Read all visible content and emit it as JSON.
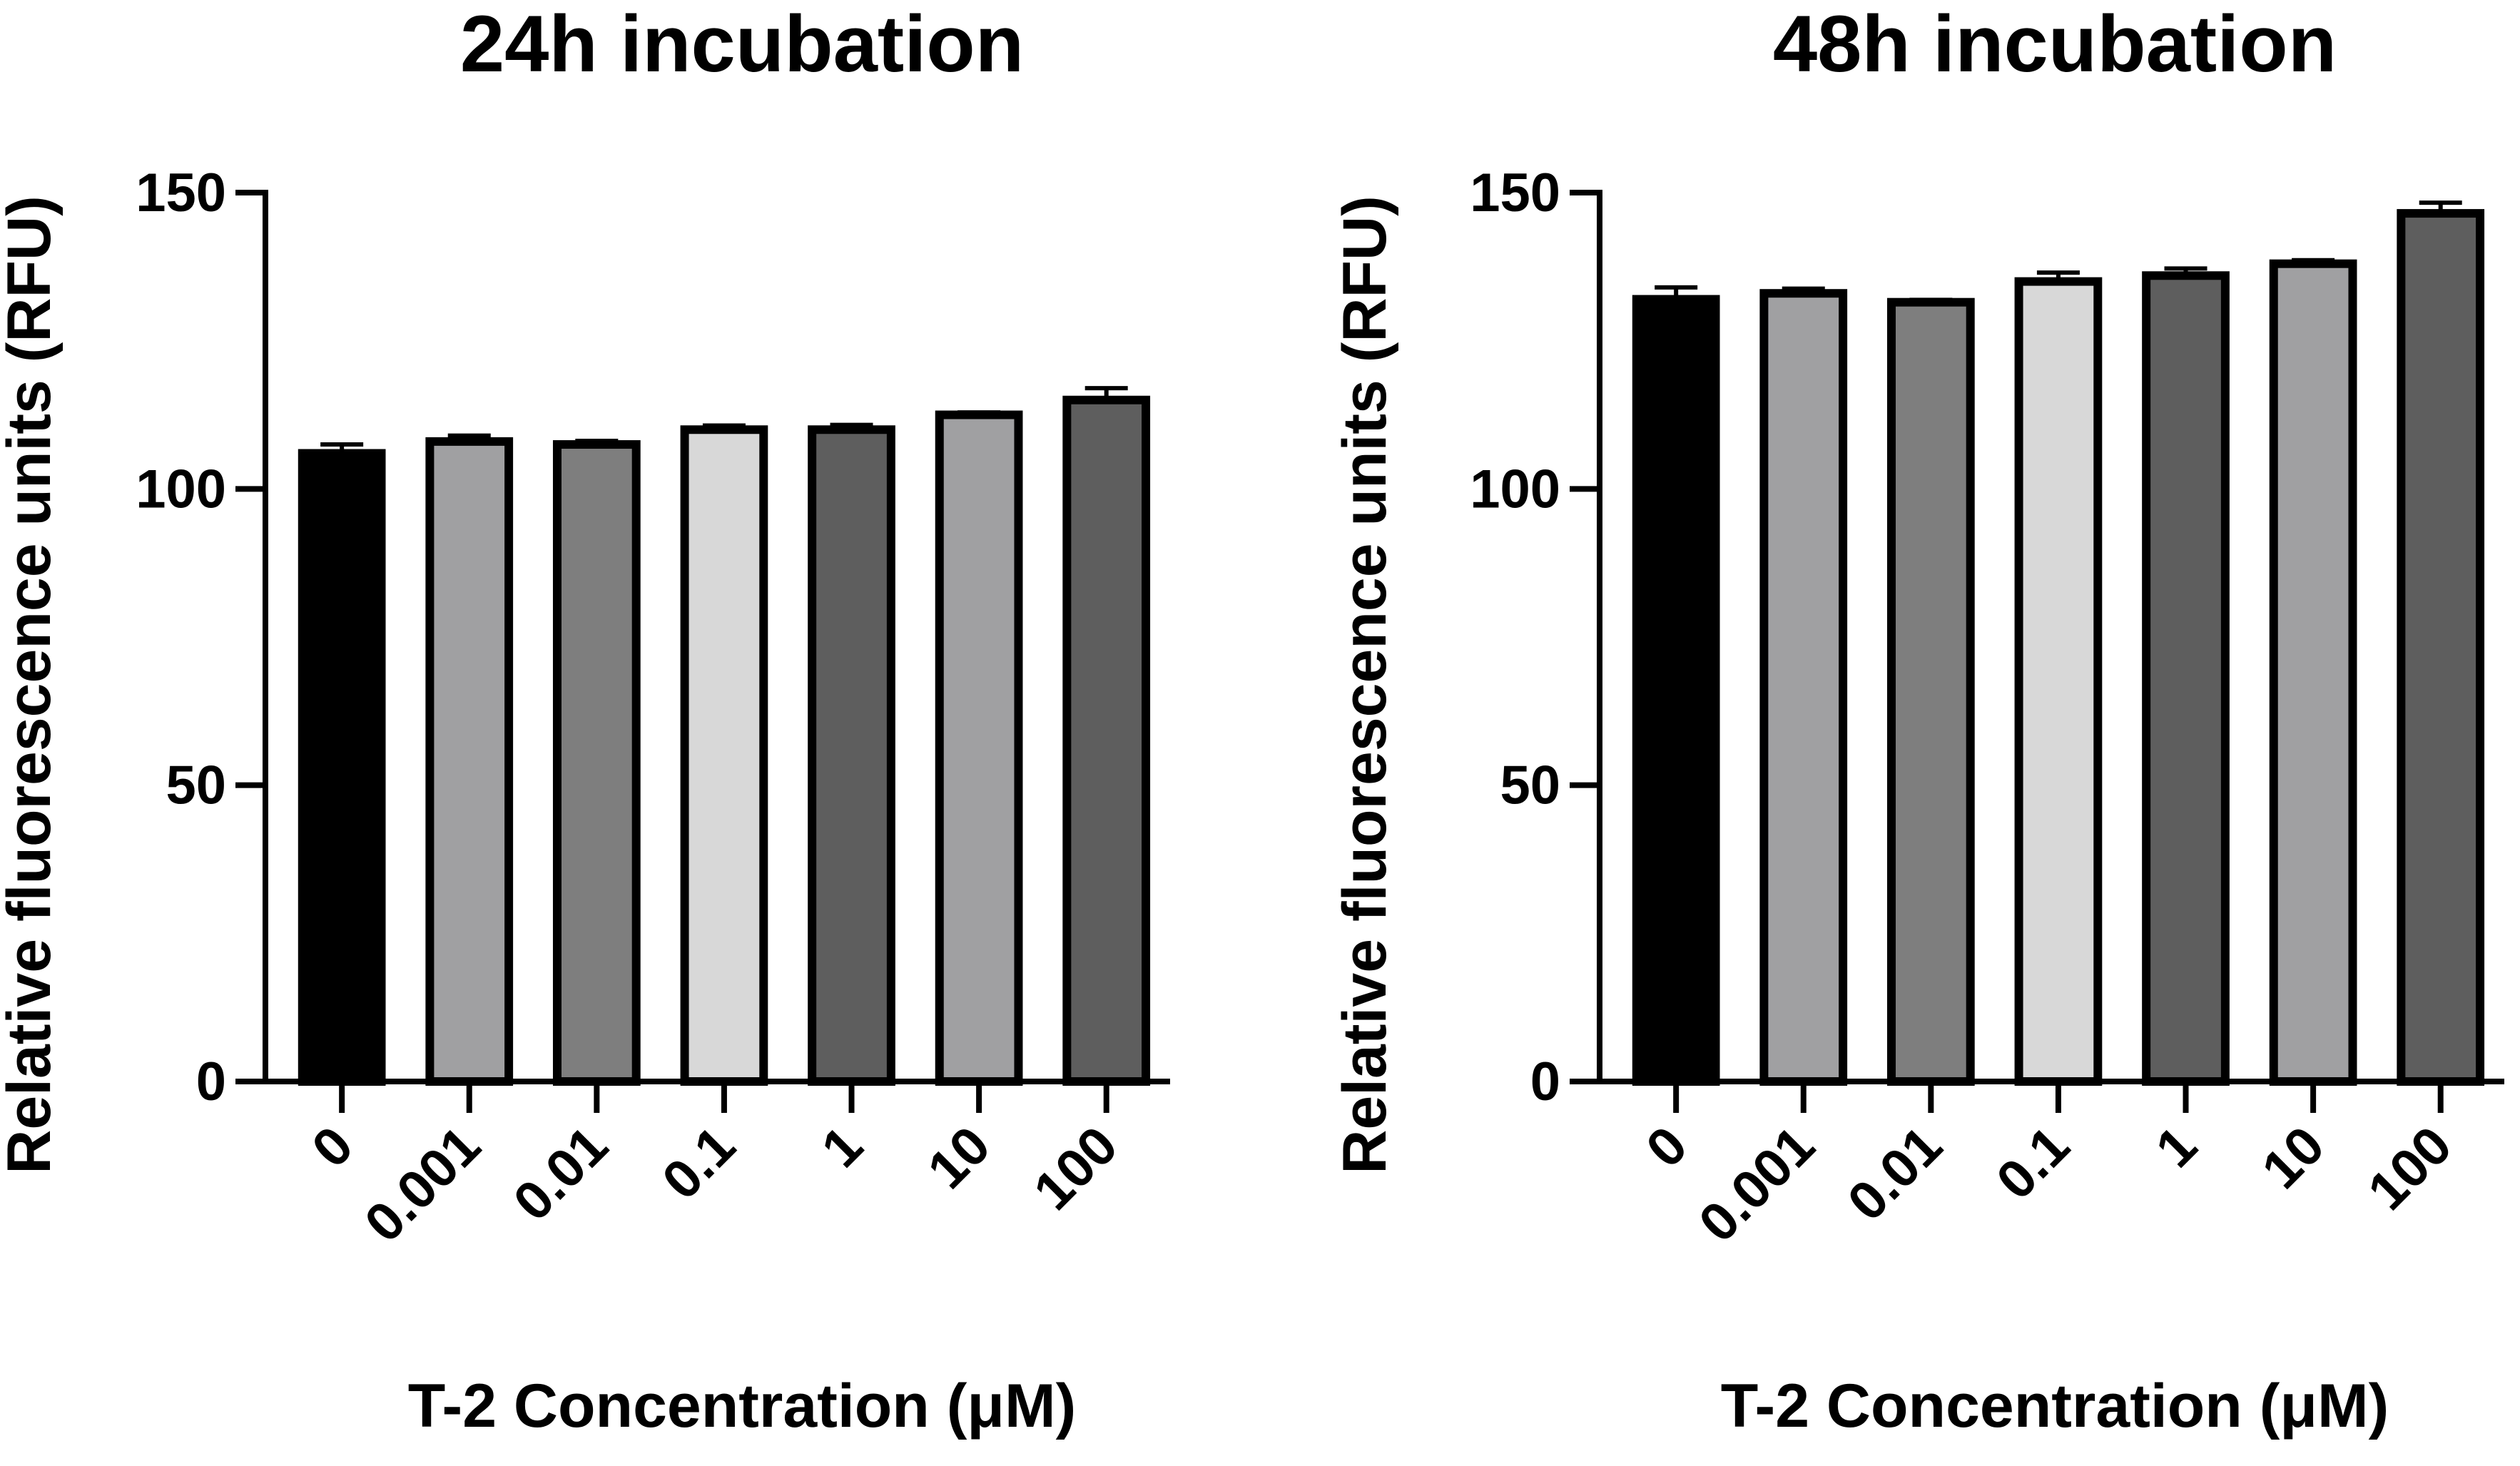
{
  "chart_data": [
    {
      "type": "bar",
      "title": "24h incubation",
      "xlabel": "T-2 Concentration (μM)",
      "ylabel": "Relative fluorescence units (RFU)",
      "ylim": [
        0,
        150
      ],
      "yticks": [
        "0",
        "50",
        "100",
        "150"
      ],
      "categories": [
        "0",
        "0.001",
        "0.01",
        "0.1",
        "1",
        "10",
        "100"
      ],
      "values": [
        106,
        108,
        107.5,
        110,
        110,
        112.5,
        115
      ],
      "errors": [
        1.5,
        1,
        0.6,
        0.7,
        0.8,
        0.4,
        2
      ],
      "fill_colors": [
        "#000000",
        "#a0a0a2",
        "#7e7e7e",
        "#d8d8d8",
        "#5e5e5e",
        "#a0a0a2",
        "#5e5e5e"
      ],
      "grid": false,
      "legend": "none"
    },
    {
      "type": "bar",
      "title": "48h incubation",
      "xlabel": "T-2 Concentration (μM)",
      "ylabel": "Relative fluorescence units (RFU)",
      "ylim": [
        0,
        150
      ],
      "yticks": [
        "0",
        "50",
        "100",
        "150"
      ],
      "categories": [
        "0",
        "0.001",
        "0.01",
        "0.1",
        "1",
        "10",
        "100"
      ],
      "values": [
        132,
        133,
        131.5,
        135,
        136,
        138,
        146.5
      ],
      "errors": [
        2,
        0.8,
        0.4,
        1.5,
        1.2,
        0.6,
        1.8
      ],
      "fill_colors": [
        "#000000",
        "#a0a0a2",
        "#7e7e7e",
        "#d8d8d8",
        "#5e5e5e",
        "#a0a0a2",
        "#5e5e5e"
      ],
      "grid": false,
      "legend": "none"
    }
  ]
}
